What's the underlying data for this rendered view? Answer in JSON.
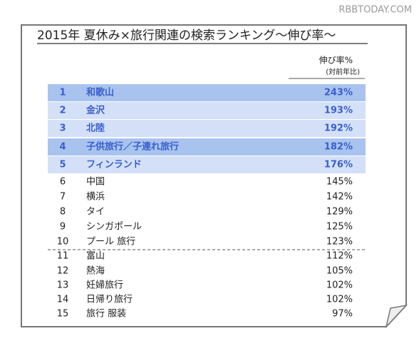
{
  "watermark": "RBBTODAY.COM",
  "title": "2015年 夏休み×旅行関連の検索ランキング～伸び率～",
  "header": {
    "growth": "伸び率%",
    "note": "(対前年比)"
  },
  "rows": [
    [
      "1",
      "和歌山",
      "243%"
    ],
    [
      "2",
      "金沢",
      "193%"
    ],
    [
      "3",
      "北陸",
      "192%"
    ],
    [
      "4",
      "子供旅行／子連れ旅行",
      "182%"
    ],
    [
      "5",
      "フィンランド",
      "176%"
    ],
    [
      "6",
      "中国",
      "145%"
    ],
    [
      "7",
      "横浜",
      "142%"
    ],
    [
      "8",
      "タイ",
      "129%"
    ],
    [
      "9",
      "シンガポール",
      "125%"
    ],
    [
      "10",
      "プール 旅行",
      "123%"
    ],
    [
      "11",
      "富山",
      "112%"
    ],
    [
      "12",
      "熱海",
      "105%"
    ],
    [
      "13",
      "妊婦旅行",
      "102%"
    ],
    [
      "14",
      "日帰り旅行",
      "102%"
    ],
    [
      "15",
      "旅行 服装",
      "97%"
    ]
  ]
}
